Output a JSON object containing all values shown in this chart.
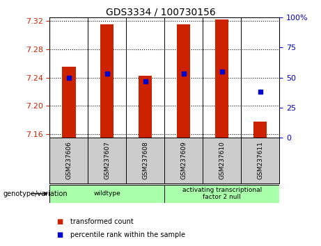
{
  "title": "GDS3334 / 100730156",
  "samples": [
    "GSM237606",
    "GSM237607",
    "GSM237608",
    "GSM237609",
    "GSM237610",
    "GSM237611"
  ],
  "transformed_counts": [
    7.255,
    7.315,
    7.242,
    7.315,
    7.322,
    7.178
  ],
  "percentile_ranks": [
    50,
    53,
    47,
    53,
    55,
    38
  ],
  "ylim_left": [
    7.155,
    7.325
  ],
  "ylim_right": [
    0,
    100
  ],
  "yticks_left": [
    7.16,
    7.2,
    7.24,
    7.28,
    7.32
  ],
  "yticks_right": [
    0,
    25,
    50,
    75,
    100
  ],
  "bar_color": "#cc2200",
  "dot_color": "#0000cc",
  "bar_bottom": 7.155,
  "bar_width": 0.35,
  "legend_items": [
    {
      "color": "#cc2200",
      "label": "transformed count"
    },
    {
      "color": "#0000cc",
      "label": "percentile rank within the sample"
    }
  ],
  "genotype_label": "genotype/variation",
  "group_labels": [
    "wildtype",
    "activating transcriptional\nfactor 2 null"
  ],
  "group_colors": [
    "#aaffaa",
    "#aaffaa"
  ],
  "left_tick_color": "#cc2200",
  "right_tick_color": "#0000cc",
  "bg_color": "#ffffff",
  "plot_bg_color": "#ffffff",
  "sample_bg_color": "#cccccc",
  "label_fontsize": 7,
  "tick_fontsize": 8
}
